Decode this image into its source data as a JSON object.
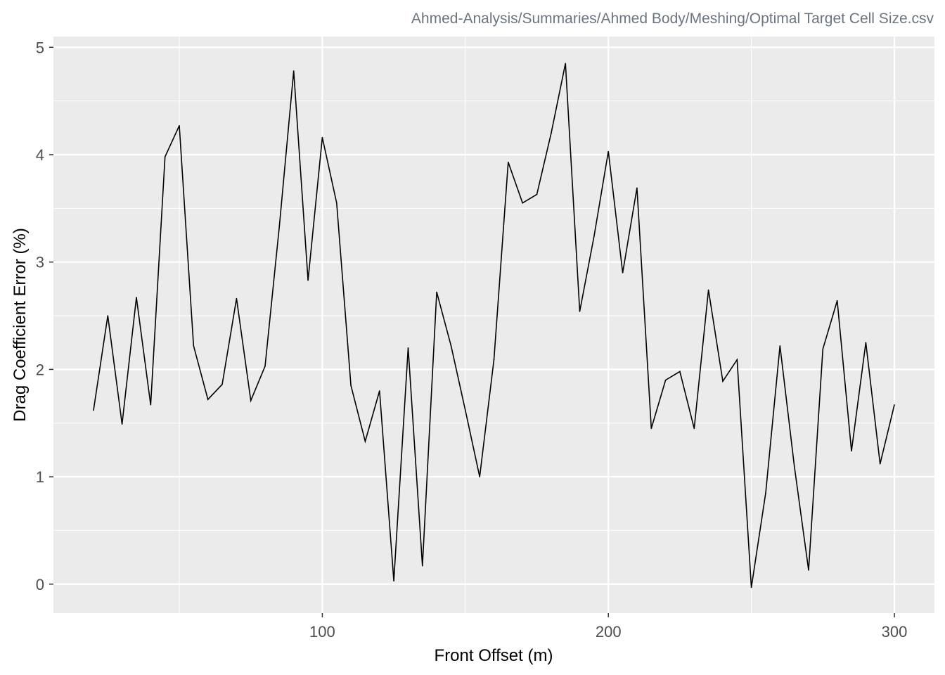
{
  "chart_data": {
    "type": "line",
    "subtitle": "Ahmed-Analysis/Summaries/Ahmed Body/Meshing/Optimal Target Cell Size.csv",
    "xlabel": "Front Offset (m)",
    "ylabel": "Drag Coefficient Error (%)",
    "xlim": [
      6,
      314
    ],
    "ylim": [
      -0.27,
      5.1
    ],
    "x_ticks": [
      100,
      200,
      300
    ],
    "x_minor_ticks": [
      50,
      150,
      250
    ],
    "y_ticks": [
      0,
      1,
      2,
      3,
      4,
      5
    ],
    "y_minor_ticks": [
      0.5,
      1.5,
      2.5,
      3.5,
      4.5
    ],
    "grid": true,
    "panel_color": "#ebebeb",
    "line_color": "#000000",
    "series": [
      {
        "name": "Drag Coefficient Error",
        "x": [
          20,
          25,
          30,
          35,
          40,
          45,
          50,
          55,
          60,
          65,
          70,
          75,
          80,
          85,
          90,
          95,
          100,
          105,
          110,
          115,
          120,
          125,
          130,
          135,
          140,
          145,
          150,
          155,
          160,
          165,
          170,
          175,
          180,
          185,
          190,
          195,
          200,
          205,
          210,
          215,
          220,
          225,
          230,
          235,
          240,
          245,
          250,
          255,
          260,
          265,
          270,
          275,
          280,
          285,
          290,
          295,
          300
        ],
        "values": [
          1.62,
          2.5,
          1.49,
          2.67,
          1.67,
          3.98,
          4.27,
          2.22,
          1.72,
          1.86,
          2.66,
          1.71,
          2.03,
          3.34,
          4.78,
          2.83,
          4.16,
          3.55,
          1.85,
          1.33,
          1.8,
          0.03,
          2.2,
          0.17,
          2.72,
          2.22,
          1.62,
          1.0,
          2.09,
          3.93,
          3.55,
          3.63,
          4.2,
          4.85,
          2.54,
          3.24,
          4.03,
          2.9,
          3.69,
          1.45,
          1.9,
          1.98,
          1.45,
          2.74,
          1.89,
          2.09,
          -0.03,
          0.85,
          2.22,
          1.1,
          0.13,
          2.19,
          2.64,
          1.24,
          2.25,
          1.12,
          1.67
        ]
      }
    ]
  }
}
